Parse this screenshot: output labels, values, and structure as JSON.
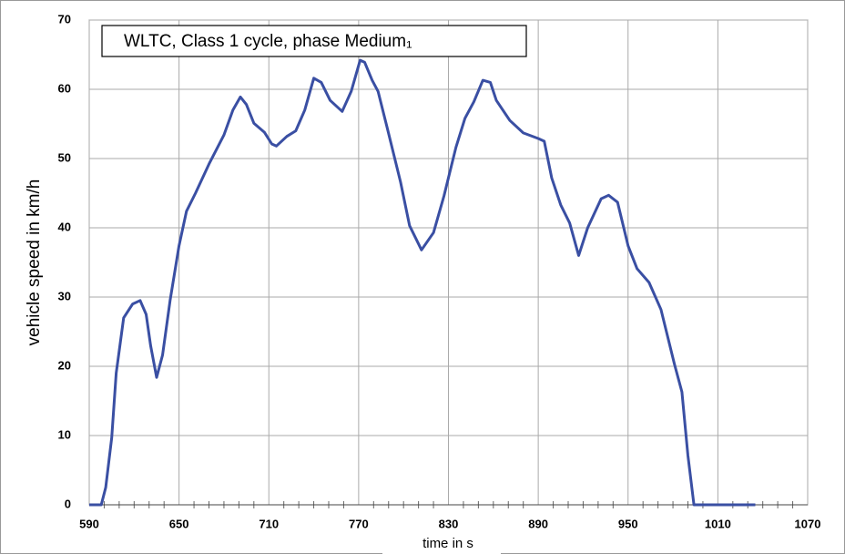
{
  "chart_data": {
    "type": "line",
    "title": "WLTC, Class 1 cycle, phase Medium₁",
    "x_label": "time in s",
    "y_label": "vehicle speed in km/h",
    "xlim": [
      590,
      1070
    ],
    "xticks": [
      590,
      650,
      710,
      770,
      830,
      890,
      950,
      1010,
      1070
    ],
    "ylim": [
      0,
      70
    ],
    "yticks": [
      0,
      10,
      20,
      30,
      40,
      50,
      60,
      70
    ],
    "grid": true,
    "series": [
      {
        "name": "vehicle speed",
        "color": "#3a4fa3",
        "x": [
          590,
          598,
          601,
          605,
          608,
          613,
          619,
          624,
          628,
          631,
          635,
          639,
          644,
          650,
          655,
          661,
          670,
          680,
          686,
          691,
          695,
          700,
          707,
          712,
          715,
          722,
          728,
          734,
          740,
          745,
          751,
          759,
          765,
          771,
          774,
          779,
          783,
          789,
          798,
          804,
          812,
          820,
          827,
          835,
          841,
          847,
          853,
          858,
          862,
          871,
          880,
          890,
          894,
          899,
          905,
          911,
          917,
          923,
          932,
          937,
          943,
          950,
          956,
          964,
          972,
          981,
          986,
          990,
          994,
          1035
        ],
        "values": [
          0,
          0,
          2.5,
          9.7,
          19,
          27,
          29,
          29.5,
          27.5,
          23,
          18.4,
          21.6,
          29.5,
          37.4,
          42.4,
          45,
          49.2,
          53.4,
          57,
          58.9,
          57.8,
          55.1,
          53.8,
          52.1,
          51.8,
          53.2,
          54,
          57,
          61.6,
          61,
          58.4,
          56.8,
          59.7,
          64.2,
          63.9,
          61.3,
          59.7,
          54.5,
          46.6,
          40.3,
          36.8,
          39.3,
          44.6,
          51.6,
          55.8,
          58.2,
          61.3,
          61,
          58.4,
          55.5,
          53.7,
          52.9,
          52.5,
          47.2,
          43.3,
          40.7,
          36,
          40,
          44.2,
          44.7,
          43.7,
          37.4,
          34.1,
          32.1,
          28.2,
          20.3,
          16.3,
          7.1,
          0,
          0
        ]
      }
    ]
  }
}
